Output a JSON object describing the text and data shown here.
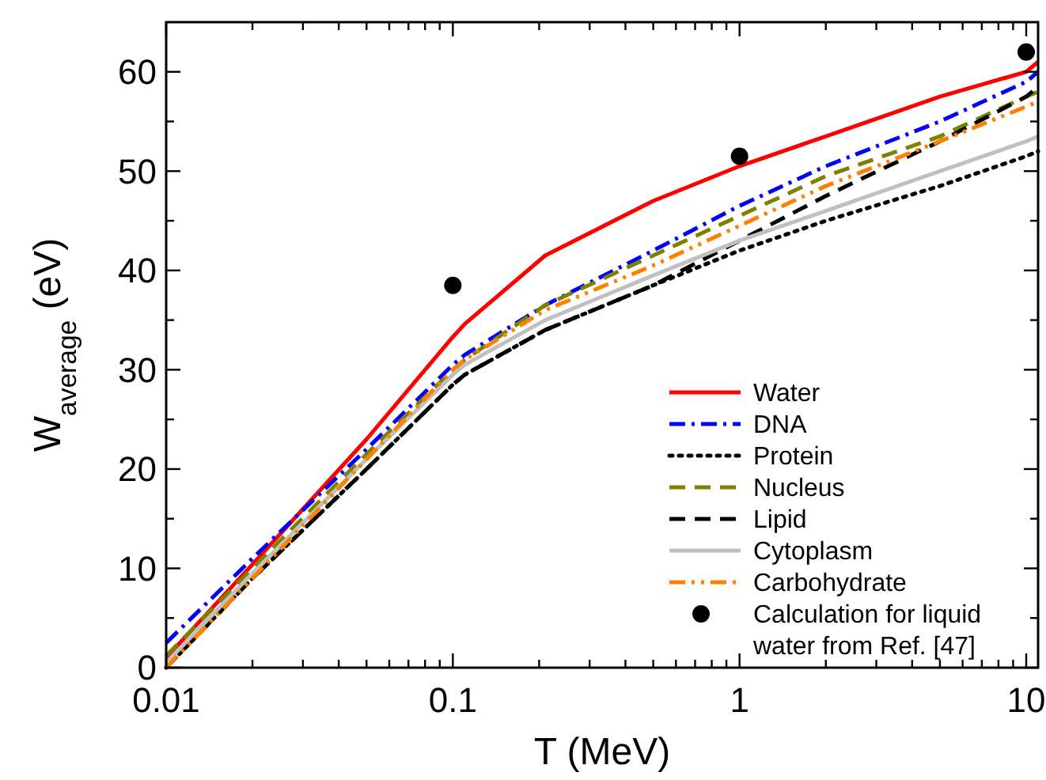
{
  "chart_data": {
    "type": "line",
    "xlabel": "T (MeV)",
    "ylabel": "W$_{average}$ (eV)",
    "log": "x",
    "xlim": [
      0.01,
      11
    ],
    "ylim": [
      0,
      65
    ],
    "xticks": [
      0.01,
      {
        "value": 0.02,
        "label": null
      },
      {
        "value": 0.03,
        "label": null
      },
      {
        "value": 0.04,
        "label": null
      },
      {
        "value": 0.05,
        "label": null
      },
      {
        "value": 0.06,
        "label": null
      },
      {
        "value": 0.07,
        "label": null
      },
      {
        "value": 0.08,
        "label": null
      },
      {
        "value": 0.09,
        "label": null
      },
      0.1,
      {
        "value": 0.2,
        "label": null
      },
      {
        "value": 0.3,
        "label": null
      },
      {
        "value": 0.4,
        "label": null
      },
      {
        "value": 0.5,
        "label": null
      },
      {
        "value": 0.6,
        "label": null
      },
      {
        "value": 0.7,
        "label": null
      },
      {
        "value": 0.8,
        "label": null
      },
      {
        "value": 0.9,
        "label": null
      },
      1,
      {
        "value": 2,
        "label": null
      },
      {
        "value": 3,
        "label": null
      },
      {
        "value": 4,
        "label": null
      },
      {
        "value": 5,
        "label": null
      },
      {
        "value": 6,
        "label": null
      },
      {
        "value": 7,
        "label": null
      },
      {
        "value": 8,
        "label": null
      },
      {
        "value": 9,
        "label": null
      },
      10
    ],
    "yticks": [
      0,
      {
        "value": 5,
        "label": null
      },
      10,
      {
        "value": 15,
        "label": null
      },
      20,
      {
        "value": 25,
        "label": null
      },
      30,
      {
        "value": 35,
        "label": null
      },
      40,
      {
        "value": 45,
        "label": null
      },
      50,
      {
        "value": 55,
        "label": null
      },
      60
    ],
    "grid": false,
    "legend": "bottom right",
    "marker": "none",
    "x": [
      0.01,
      0.02,
      0.05,
      0.1,
      0.11,
      0.21,
      0.5,
      1,
      2,
      5,
      10,
      11
    ],
    "series": [
      {
        "name": "Water",
        "color": "#ff0000",
        "line_style": "solid",
        "values": [
          1.0,
          10.4,
          23,
          33.3,
          34.6,
          41.5,
          47,
          50.5,
          53.5,
          57.5,
          60,
          61
        ]
      },
      {
        "name": "DNA",
        "color": "#0000ff",
        "line_style": "dashdot",
        "values": [
          2.5,
          11,
          22,
          30.5,
          31.5,
          36.5,
          42,
          46.5,
          50.5,
          55,
          59,
          60
        ]
      },
      {
        "name": "Protein",
        "color": "#000000",
        "line_style": "dotted",
        "values": [
          0,
          9,
          20,
          28.5,
          29.5,
          34,
          38.5,
          42,
          45,
          48.5,
          51.5,
          52
        ]
      },
      {
        "name": "Nucleus",
        "color": "#808000",
        "line_style": "dashed",
        "values": [
          1.2,
          10,
          21.5,
          30,
          31,
          36.5,
          41.5,
          45.5,
          49.5,
          53.5,
          57.5,
          58
        ]
      },
      {
        "name": "Lipid",
        "color": "#000000",
        "line_style": "dashed",
        "values": [
          0,
          9,
          20,
          28.5,
          29.5,
          34,
          38.5,
          43,
          47.5,
          53,
          57.5,
          58.5
        ]
      },
      {
        "name": "Cytoplasm",
        "color": "#c0c0c0",
        "line_style": "solid",
        "values": [
          0.5,
          9.5,
          21,
          29.5,
          30.5,
          35,
          39.5,
          43,
          46,
          50,
          53,
          53.5
        ]
      },
      {
        "name": "Carbohydrate",
        "color": "#ff8000",
        "line_style": "dashdotdot",
        "values": [
          0,
          9,
          21,
          30,
          31,
          36,
          40.5,
          44.5,
          48.5,
          53,
          56.5,
          57
        ]
      },
      {
        "name": "Calculation for liquid water from Ref. [47]",
        "type": "scatter",
        "marker": "circle",
        "color": "#000000",
        "x": [
          0.1,
          1,
          10
        ],
        "values": [
          38.5,
          51.5,
          62
        ]
      }
    ]
  }
}
